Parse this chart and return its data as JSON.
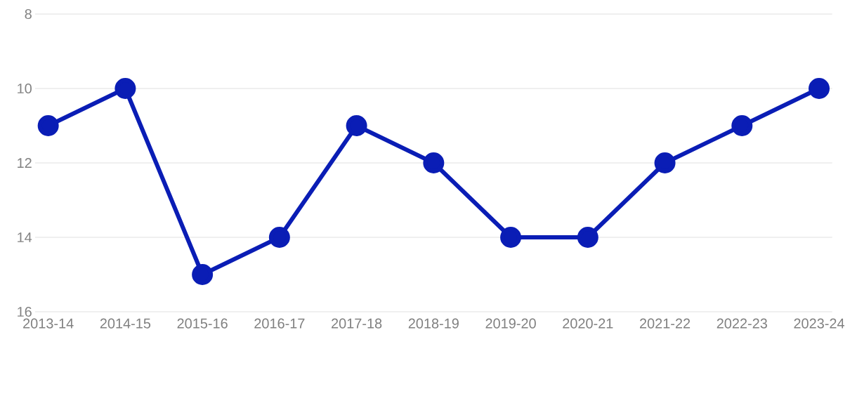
{
  "chart_data": {
    "type": "line",
    "categories": [
      "2013-14",
      "2014-15",
      "2015-16",
      "2016-17",
      "2017-18",
      "2018-19",
      "2019-20",
      "2020-21",
      "2021-22",
      "2022-23",
      "2023-24"
    ],
    "series": [
      {
        "color": "#0a1db5",
        "values": [
          11,
          10,
          15,
          14,
          11,
          12,
          14,
          14,
          12,
          11,
          10
        ]
      }
    ],
    "ylim": [
      16,
      8
    ],
    "yticks": [
      8,
      10,
      12,
      14,
      16
    ],
    "grid": "y",
    "marker": "circle",
    "line_style": "solid"
  }
}
